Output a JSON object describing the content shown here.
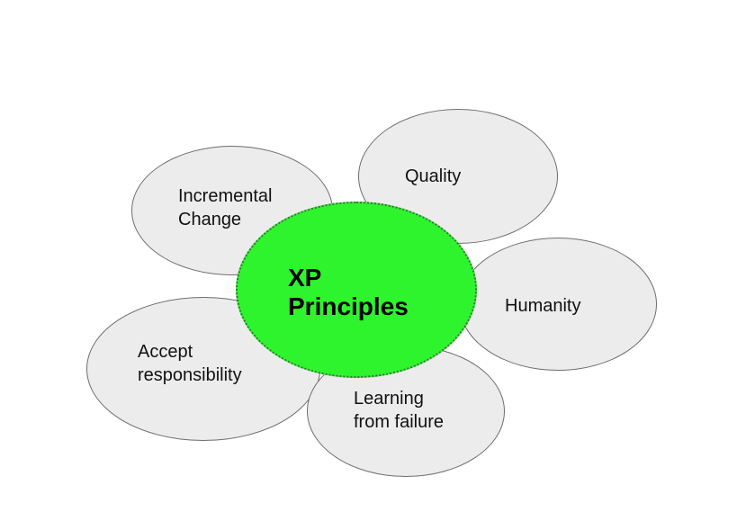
{
  "diagram": {
    "center": {
      "label": "XP\nPrinciples",
      "color": "#2ef42e"
    },
    "petals": [
      {
        "label": "Quality"
      },
      {
        "label": "Incremental\nChange"
      },
      {
        "label": "Humanity"
      },
      {
        "label": "Accept\nresponsibility"
      },
      {
        "label": "Learning\nfrom failure"
      }
    ],
    "petal_color": "#ececec"
  }
}
